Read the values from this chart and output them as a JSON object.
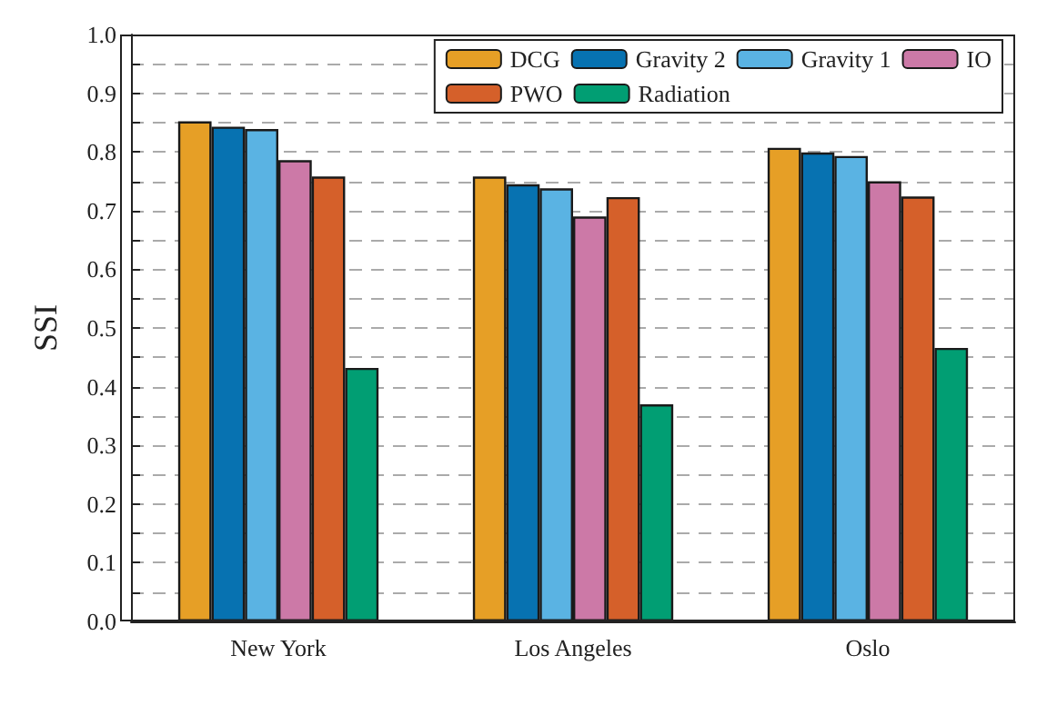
{
  "chart_data": {
    "type": "bar",
    "ylabel": "SSI",
    "categories": [
      "New York",
      "Los Angeles",
      "Oslo"
    ],
    "series": [
      {
        "name": "DCG",
        "color": "#e69f26",
        "values": [
          0.852,
          0.758,
          0.807
        ]
      },
      {
        "name": "Gravity 2",
        "color": "#0772b1",
        "values": [
          0.843,
          0.745,
          0.799
        ]
      },
      {
        "name": "Gravity 1",
        "color": "#5ab3e3",
        "values": [
          0.839,
          0.738,
          0.793
        ]
      },
      {
        "name": "IO",
        "color": "#cc79a7",
        "values": [
          0.786,
          0.69,
          0.75
        ]
      },
      {
        "name": "PWO",
        "color": "#d5602a",
        "values": [
          0.758,
          0.723,
          0.724
        ]
      },
      {
        "name": "Radiation",
        "color": "#019e73",
        "values": [
          0.432,
          0.37,
          0.466
        ]
      }
    ],
    "ylim": [
      0,
      1
    ],
    "yticks": [
      {
        "value": 0,
        "label": "0.0"
      },
      {
        "value": 0.05,
        "label": null
      },
      {
        "value": 0.1,
        "label": "0.1"
      },
      {
        "value": 0.15,
        "label": null
      },
      {
        "value": 0.2,
        "label": "0.2"
      },
      {
        "value": 0.25,
        "label": null
      },
      {
        "value": 0.3,
        "label": "0.3"
      },
      {
        "value": 0.35,
        "label": null
      },
      {
        "value": 0.4,
        "label": "0.4"
      },
      {
        "value": 0.45,
        "label": null
      },
      {
        "value": 0.5,
        "label": "0.5"
      },
      {
        "value": 0.55,
        "label": null
      },
      {
        "value": 0.6,
        "label": "0.6"
      },
      {
        "value": 0.65,
        "label": null
      },
      {
        "value": 0.7,
        "label": "0.7"
      },
      {
        "value": 0.75,
        "label": null
      },
      {
        "value": 0.8,
        "label": "0.8"
      },
      {
        "value": 0.85,
        "label": null
      },
      {
        "value": 0.9,
        "label": "0.9"
      },
      {
        "value": 0.95,
        "label": null
      },
      {
        "value": 1,
        "label": "1.0"
      }
    ],
    "grid": "y",
    "legend": "top right"
  }
}
